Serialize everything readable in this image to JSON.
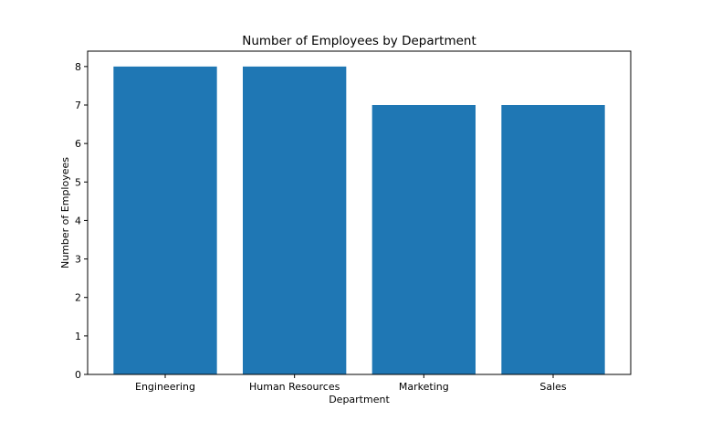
{
  "chart_data": {
    "type": "bar",
    "title": "Number of Employees by Department",
    "xlabel": "Department",
    "ylabel": "Number of Employees",
    "categories": [
      "Engineering",
      "Human Resources",
      "Marketing",
      "Sales"
    ],
    "values": [
      8,
      8,
      7,
      7
    ],
    "ylim": [
      0,
      8.4
    ],
    "yticks": [
      0,
      1,
      2,
      3,
      4,
      5,
      6,
      7,
      8
    ],
    "bar_color": "#1f77b4",
    "grid": false,
    "legend": "none"
  }
}
